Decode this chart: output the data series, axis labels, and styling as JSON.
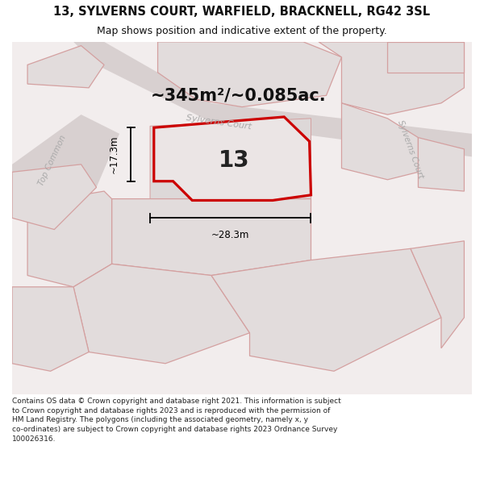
{
  "title": "13, SYLVERNS COURT, WARFIELD, BRACKNELL, RG42 3SL",
  "subtitle": "Map shows position and indicative extent of the property.",
  "footer": "Contains OS data © Crown copyright and database right 2021. This information is subject to Crown copyright and database rights 2023 and is reproduced with the permission of HM Land Registry. The polygons (including the associated geometry, namely x, y co-ordinates) are subject to Crown copyright and database rights 2023 Ordnance Survey 100026316.",
  "area_label": "~345m²/~0.085ac.",
  "number_label": "13",
  "dim_height": "~17.3m",
  "dim_width": "~28.3m",
  "road_label_center": "Sylverns Court",
  "road_label_right": "Sylverns Court",
  "road_label_left": "Top Common",
  "bg_color": "#f2eded",
  "parcel_fill": "#e2dcdc",
  "parcel_edge": "#d4a0a0",
  "highlight_fill": "#ebe5e5",
  "highlight_edge": "#cc0000",
  "road_text_color": "#aaaaaa",
  "dim_color": "#111111",
  "title_fontsize": 10.5,
  "subtitle_fontsize": 9,
  "area_fontsize": 15,
  "number_fontsize": 20,
  "footer_fontsize": 6.5
}
